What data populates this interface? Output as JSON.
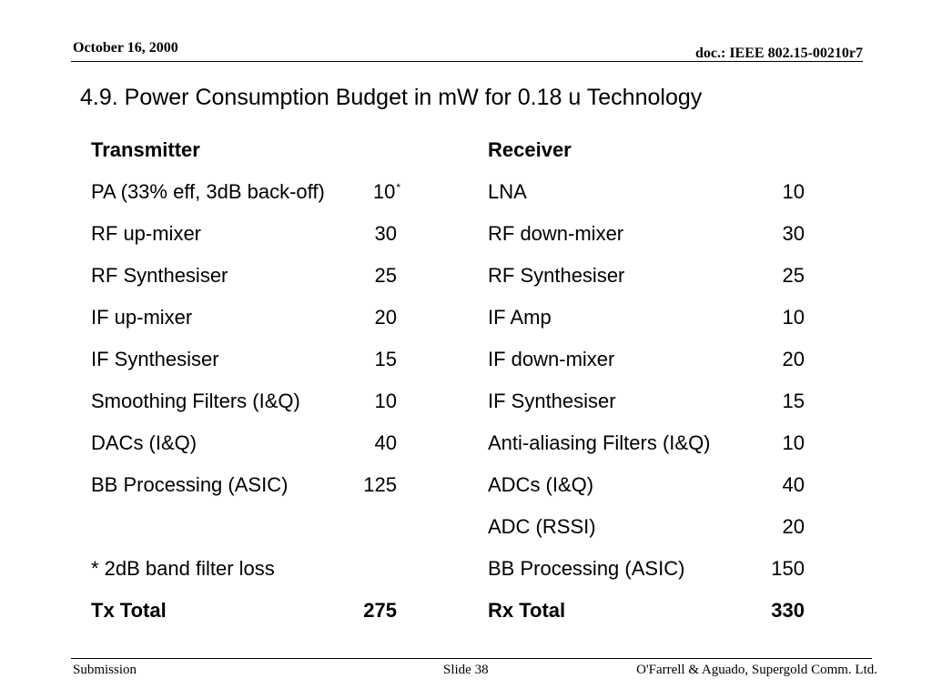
{
  "header": {
    "date": "October 16, 2000",
    "doc": "doc.: IEEE 802.15-00210r7"
  },
  "title": "4.9. Power Consumption Budget in mW for 0.18 u Technology",
  "transmitter": {
    "heading": "Transmitter",
    "rows": [
      {
        "label": "PA (33% eff, 3dB back-off)",
        "value": "10",
        "note": "*"
      },
      {
        "label": "RF up-mixer",
        "value": "30"
      },
      {
        "label": "RF Synthesiser",
        "value": "25"
      },
      {
        "label": "IF up-mixer",
        "value": "20"
      },
      {
        "label": "IF Synthesiser",
        "value": "15"
      },
      {
        "label": "Smoothing Filters (I&Q)",
        "value": "10"
      },
      {
        "label": "DACs (I&Q)",
        "value": "40"
      },
      {
        "label": "BB Processing (ASIC)",
        "value": "125"
      }
    ],
    "footnote": "* 2dB band filter loss",
    "total_label": "Tx Total",
    "total_value": "275"
  },
  "receiver": {
    "heading": "Receiver",
    "rows": [
      {
        "label": "LNA",
        "value": "10"
      },
      {
        "label": "RF down-mixer",
        "value": "30"
      },
      {
        "label": "RF Synthesiser",
        "value": "25"
      },
      {
        "label": "IF Amp",
        "value": "10"
      },
      {
        "label": "IF down-mixer",
        "value": "20"
      },
      {
        "label": "IF Synthesiser",
        "value": "15"
      },
      {
        "label": "Anti-aliasing Filters (I&Q)",
        "value": "10"
      },
      {
        "label": "ADCs (I&Q)",
        "value": "40"
      },
      {
        "label": "ADC (RSSI)",
        "value": "20"
      },
      {
        "label": "BB Processing (ASIC)",
        "value": "150"
      }
    ],
    "total_label": "Rx Total",
    "total_value": "330"
  },
  "footer": {
    "left": "Submission",
    "middle": "Slide 38",
    "right": "O'Farrell & Aguado, Supergold Comm. Ltd."
  }
}
